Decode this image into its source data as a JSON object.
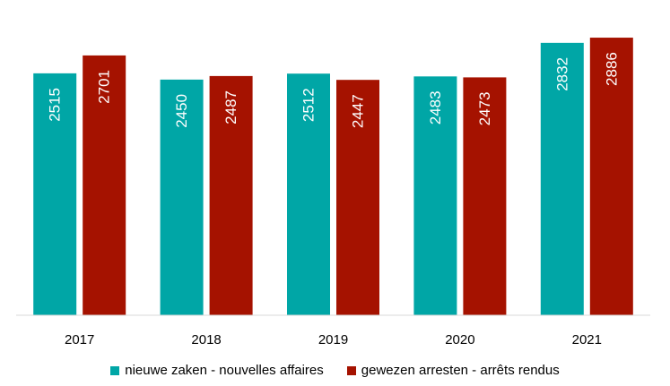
{
  "chart_data": {
    "type": "bar",
    "categories": [
      "2017",
      "2018",
      "2019",
      "2020",
      "2021"
    ],
    "series": [
      {
        "name": "nieuwe zaken - nouvelles affaires",
        "values": [
          2515,
          2450,
          2512,
          2483,
          2832
        ],
        "color": "#00a6a6"
      },
      {
        "name": "gewezen arresten - arrêts rendus",
        "values": [
          2701,
          2487,
          2447,
          2473,
          2886
        ],
        "color": "#a51200"
      }
    ],
    "ylim": [
      0,
      3000
    ],
    "grid": false,
    "legend_position": "bottom",
    "data_labels": "vertical inside bars"
  }
}
